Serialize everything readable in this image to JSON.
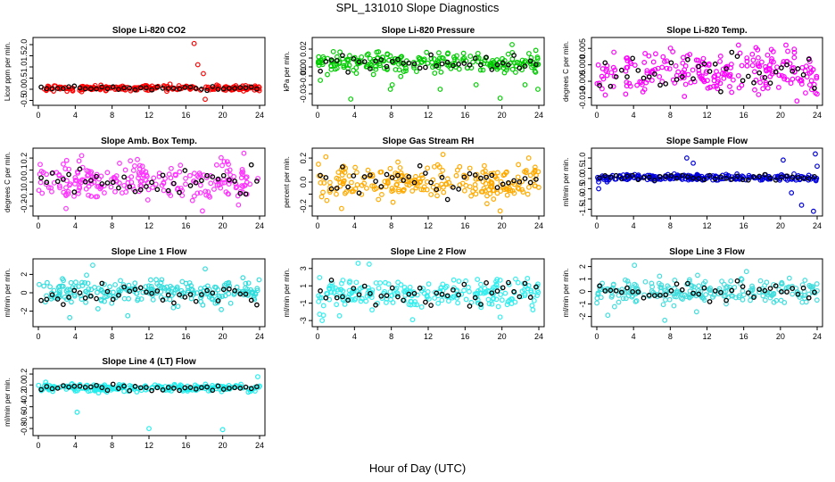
{
  "page": {
    "title": "SPL_131010  Slope Diagnostics",
    "xlabel": "Hour of Day (UTC)"
  },
  "chart_data": [
    {
      "type": "scatter",
      "title": "Slope Li-820 CO2",
      "ylabel": "Licor ppm per min.",
      "color": "#ff0000",
      "xlim": [
        0,
        24
      ],
      "ylim": [
        -0.6,
        2.2
      ],
      "yticks": [
        -0.5,
        0.0,
        0.5,
        1.0,
        1.5,
        2.0
      ],
      "ylabels": [
        "-0.5",
        "0.0",
        "0.5",
        "1.0",
        "1.5",
        "2.0"
      ],
      "center": 0.05,
      "spread": 0.08,
      "outliers": [
        [
          16.9,
          2.05
        ],
        [
          17.3,
          1.1
        ],
        [
          18.1,
          -0.45
        ],
        [
          17.9,
          0.7
        ]
      ],
      "seed": 11
    },
    {
      "type": "scatter",
      "title": "Slope Li-820 Pressure",
      "ylabel": "kPa per min.",
      "color": "#00cc00",
      "xlim": [
        0,
        24
      ],
      "ylim": [
        -0.04,
        0.03
      ],
      "yticks": [
        -0.03,
        -0.02,
        -0.01,
        0.0,
        0.01,
        0.02
      ],
      "ylabels": [
        "-0.03",
        "",
        "-0.01",
        "0.00",
        "",
        "0.02"
      ],
      "center": 0.005,
      "spread": 0.008,
      "outliers": [
        [
          0.3,
          -0.015
        ],
        [
          3.6,
          -0.036
        ],
        [
          7.9,
          -0.025
        ],
        [
          8.1,
          -0.02
        ],
        [
          13.3,
          -0.025
        ],
        [
          17.2,
          -0.02
        ],
        [
          19.8,
          -0.035
        ],
        [
          21.1,
          0.025
        ],
        [
          22.5,
          -0.02
        ],
        [
          23.9,
          -0.025
        ]
      ],
      "seed": 22
    },
    {
      "type": "scatter",
      "title": "Slope Li-820 Temp.",
      "ylabel": "degrees C per min.",
      "color": "#ff00ff",
      "xlim": [
        0,
        24
      ],
      "ylim": [
        -0.0115,
        0.0075
      ],
      "yticks": [
        -0.01,
        -0.005,
        0.0,
        0.005
      ],
      "ylabels": [
        "-0.010",
        "-0.005",
        "0.000",
        "0.005"
      ],
      "center": -0.002,
      "spread": 0.0045,
      "outliers": [
        [
          21.8,
          -0.011
        ],
        [
          20.6,
          0.006
        ]
      ],
      "seed": 33
    },
    {
      "type": "scatter",
      "title": "Slope Amb. Box Temp.",
      "ylabel": "degrees C per min.",
      "color": "#ff33ff",
      "xlim": [
        0,
        24
      ],
      "ylim": [
        -0.26,
        0.26
      ],
      "yticks": [
        -0.2,
        -0.1,
        0.0,
        0.1,
        0.2
      ],
      "ylabels": [
        "-0.2",
        "-0.1",
        "0.0",
        "0.1",
        "0.2"
      ],
      "center": 0.0,
      "spread": 0.1,
      "outliers": [
        [
          3.0,
          -0.22
        ],
        [
          4.7,
          0.22
        ],
        [
          17.8,
          -0.24
        ],
        [
          22.3,
          0.24
        ]
      ],
      "seed": 44
    },
    {
      "type": "scatter",
      "title": "Slope Gas Stream RH",
      "ylabel": "percent per min.",
      "color": "#ffaa00",
      "xlim": [
        0,
        24
      ],
      "ylim": [
        -0.26,
        0.26
      ],
      "yticks": [
        -0.2,
        -0.1,
        0.0,
        0.1,
        0.2
      ],
      "ylabels": [
        "-0.2",
        "",
        "0.0",
        "",
        "0.2"
      ],
      "center": 0.0,
      "spread": 0.09,
      "outliers": [
        [
          0.9,
          0.21
        ],
        [
          2.6,
          -0.22
        ],
        [
          13.6,
          0.23
        ],
        [
          19.8,
          -0.24
        ],
        [
          22.9,
          0.2
        ]
      ],
      "seed": 55
    },
    {
      "type": "scatter",
      "title": "Slope Sample Flow",
      "ylabel": "ml/min per min.",
      "color": "#0000dd",
      "xlim": [
        0,
        24
      ],
      "ylim": [
        -1.7,
        1.35
      ],
      "yticks": [
        -1.5,
        -1.0,
        -0.5,
        0.0,
        0.5,
        1.0
      ],
      "ylabels": [
        "-1.5",
        "-1.0",
        "-0.5",
        "0.0",
        "0.5",
        "1.0"
      ],
      "center": 0.05,
      "spread": 0.1,
      "outliers": [
        [
          9.8,
          1.0
        ],
        [
          10.5,
          0.75
        ],
        [
          20.3,
          0.9
        ],
        [
          22.3,
          -1.3
        ],
        [
          23.6,
          -1.6
        ],
        [
          23.8,
          1.2
        ],
        [
          24.0,
          0.6
        ],
        [
          21.2,
          -0.7
        ],
        [
          0.2,
          -0.5
        ]
      ],
      "seed": 66
    },
    {
      "type": "scatter",
      "title": "Slope Line 1 Flow",
      "ylabel": "ml/min per min.",
      "color": "#33dddd",
      "xlim": [
        0,
        24
      ],
      "ylim": [
        -3.4,
        3.4
      ],
      "yticks": [
        -2,
        0,
        2
      ],
      "ylabels": [
        "-2",
        "0",
        "2"
      ],
      "center": 0.0,
      "spread": 0.9,
      "outliers": [
        [
          5.9,
          3.0
        ],
        [
          3.4,
          -2.7
        ],
        [
          9.7,
          -2.5
        ],
        [
          18.1,
          2.6
        ]
      ],
      "seed": 77
    },
    {
      "type": "scatter",
      "title": "Slope Line 2 Flow",
      "ylabel": "ml/min per min.",
      "color": "#33eeee",
      "xlim": [
        0,
        24
      ],
      "ylim": [
        -3.4,
        3.8
      ],
      "yticks": [
        -3,
        -1,
        1,
        3
      ],
      "ylabels": [
        "-3",
        "-1",
        "1",
        "3"
      ],
      "center": 0.0,
      "spread": 1.1,
      "outliers": [
        [
          4.4,
          3.6
        ],
        [
          5.6,
          3.5
        ],
        [
          0.5,
          -3.0
        ],
        [
          10.3,
          -2.9
        ],
        [
          19.8,
          -2.6
        ]
      ],
      "seed": 88
    },
    {
      "type": "scatter",
      "title": "Slope Line 3 Flow",
      "ylabel": "ml/min per min.",
      "color": "#44dddd",
      "xlim": [
        0,
        24
      ],
      "ylim": [
        -2.6,
        2.4
      ],
      "yticks": [
        -2,
        -1,
        0,
        1,
        2
      ],
      "ylabels": [
        "-2",
        "-1",
        "0",
        "1",
        "2"
      ],
      "center": 0.0,
      "spread": 0.7,
      "outliers": [
        [
          4.1,
          2.1
        ],
        [
          7.4,
          -2.3
        ],
        [
          16.3,
          1.6
        ],
        [
          1.2,
          -1.9
        ]
      ],
      "seed": 99
    },
    {
      "type": "scatter",
      "title": "Slope Line 4 (LT) Flow",
      "ylabel": "ml/min per min.",
      "color": "#22eeee",
      "xlim": [
        0,
        24
      ],
      "ylim": [
        -0.88,
        0.25
      ],
      "yticks": [
        -0.8,
        -0.6,
        -0.4,
        -0.2,
        0.0,
        0.2
      ],
      "ylabels": [
        "-0.8",
        "-0.6",
        "-0.4",
        "-0.2",
        "0.0",
        "0.2"
      ],
      "center": -0.05,
      "spread": 0.045,
      "outliers": [
        [
          4.2,
          -0.5
        ],
        [
          12.0,
          -0.8
        ],
        [
          20.0,
          -0.82
        ],
        [
          0.8,
          0.05
        ],
        [
          23.8,
          0.15
        ]
      ],
      "seed": 111
    }
  ],
  "xticks": [
    "0",
    "4",
    "8",
    "12",
    "16",
    "20",
    "24"
  ]
}
